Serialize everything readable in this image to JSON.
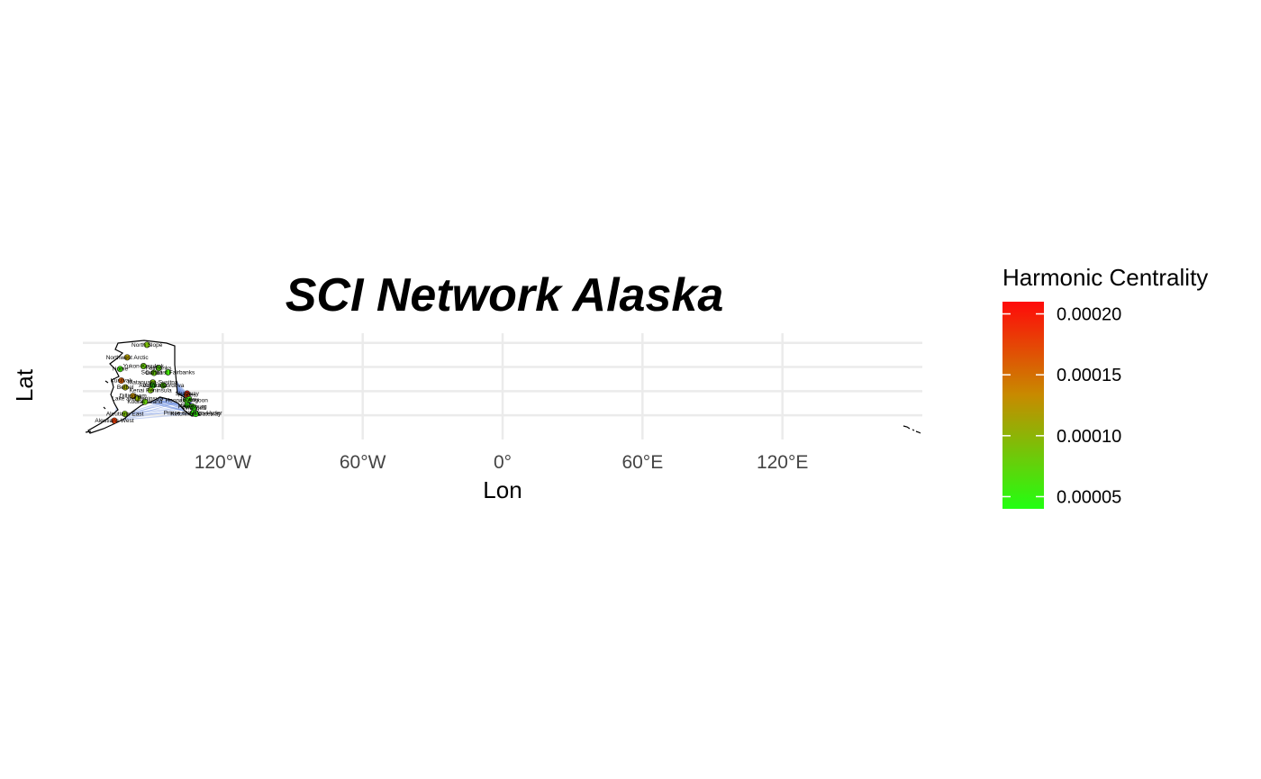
{
  "chart_data": {
    "type": "network-map",
    "title": "SCI Network Alaska",
    "xlabel": "Lon",
    "ylabel": "Lat",
    "x_ticks": [
      {
        "value": -120,
        "label": "120°W"
      },
      {
        "value": -60,
        "label": "60°W"
      },
      {
        "value": 0,
        "label": "0°"
      },
      {
        "value": 60,
        "label": "60°E"
      },
      {
        "value": 120,
        "label": "120°E"
      }
    ],
    "y_grid": [
      55,
      60,
      65,
      70
    ],
    "xlim": [
      -180,
      180
    ],
    "ylim": [
      50,
      72
    ],
    "legend": {
      "title": "Harmonic Centrality",
      "placement": "right",
      "low_color": "#22ff11",
      "mid_color": "#c88a00",
      "high_color": "#ff0a0a",
      "range": [
        4e-05,
        0.00021
      ],
      "ticks": [
        {
          "value": 0.0002,
          "label": "0.00020"
        },
        {
          "value": 0.00015,
          "label": "0.00015"
        },
        {
          "value": 0.0001,
          "label": "0.00010"
        },
        {
          "value": 5e-05,
          "label": "0.00005"
        }
      ]
    },
    "edge_color": "#6b8de0",
    "nodes": [
      {
        "name": "North Slope",
        "lon": -152.5,
        "lat": 69.6,
        "value": 9e-05
      },
      {
        "name": "Northwest Arctic",
        "lon": -161.0,
        "lat": 67.0,
        "value": 0.00012
      },
      {
        "name": "Nome",
        "lon": -164.0,
        "lat": 64.6,
        "value": 6e-05
      },
      {
        "name": "Yukon-Koyukuk",
        "lon": -154.0,
        "lat": 65.2,
        "value": 8e-05
      },
      {
        "name": "Fairbanks",
        "lon": -147.5,
        "lat": 64.8,
        "value": 7e-05
      },
      {
        "name": "Southeast Fairbanks",
        "lon": -143.5,
        "lat": 63.9,
        "value": 6e-05
      },
      {
        "name": "Denali",
        "lon": -149.5,
        "lat": 63.8,
        "value": 8e-05
      },
      {
        "name": "Kusilvak",
        "lon": -163.5,
        "lat": 62.2,
        "value": 0.00016
      },
      {
        "name": "Matanuska-Susitna",
        "lon": -150.0,
        "lat": 61.8,
        "value": 9e-05
      },
      {
        "name": "Anchorage",
        "lon": -149.9,
        "lat": 61.2,
        "value": 5e-05
      },
      {
        "name": "Valdez-Cordova",
        "lon": -145.5,
        "lat": 61.2,
        "value": 7e-05
      },
      {
        "name": "Bethel",
        "lon": -161.8,
        "lat": 60.8,
        "value": 0.00011
      },
      {
        "name": "Kenai Peninsula",
        "lon": -151.0,
        "lat": 60.2,
        "value": 9e-05
      },
      {
        "name": "Dillingham",
        "lon": -158.5,
        "lat": 59.0,
        "value": 0.00013
      },
      {
        "name": "Lake and Peninsula",
        "lon": -156.5,
        "lat": 58.5,
        "value": 0.0001
      },
      {
        "name": "Kodiak Island",
        "lon": -153.4,
        "lat": 57.8,
        "value": 8e-05
      },
      {
        "name": "Skagway",
        "lon": -135.3,
        "lat": 59.5,
        "value": 0.0002
      },
      {
        "name": "Haines",
        "lon": -135.4,
        "lat": 59.2,
        "value": 0.00018
      },
      {
        "name": "Hoonah-Angoon",
        "lon": -135.5,
        "lat": 58.1,
        "value": 6e-05
      },
      {
        "name": "Juneau",
        "lon": -134.4,
        "lat": 58.3,
        "value": 6e-05
      },
      {
        "name": "Sitka",
        "lon": -135.3,
        "lat": 57.1,
        "value": 5e-05
      },
      {
        "name": "Petersburg",
        "lon": -133.0,
        "lat": 56.8,
        "value": 6e-05
      },
      {
        "name": "Wrangell",
        "lon": -132.4,
        "lat": 56.5,
        "value": 5e-05
      },
      {
        "name": "Prince of Wales-Hyder",
        "lon": -132.8,
        "lat": 55.5,
        "value": 5e-05
      },
      {
        "name": "Ketchikan Gateway",
        "lon": -131.6,
        "lat": 55.3,
        "value": 5e-05
      },
      {
        "name": "Aleutians East",
        "lon": -162.0,
        "lat": 55.3,
        "value": 9e-05
      },
      {
        "name": "Aleutians West",
        "lon": -166.5,
        "lat": 53.9,
        "value": 0.00018
      }
    ]
  }
}
